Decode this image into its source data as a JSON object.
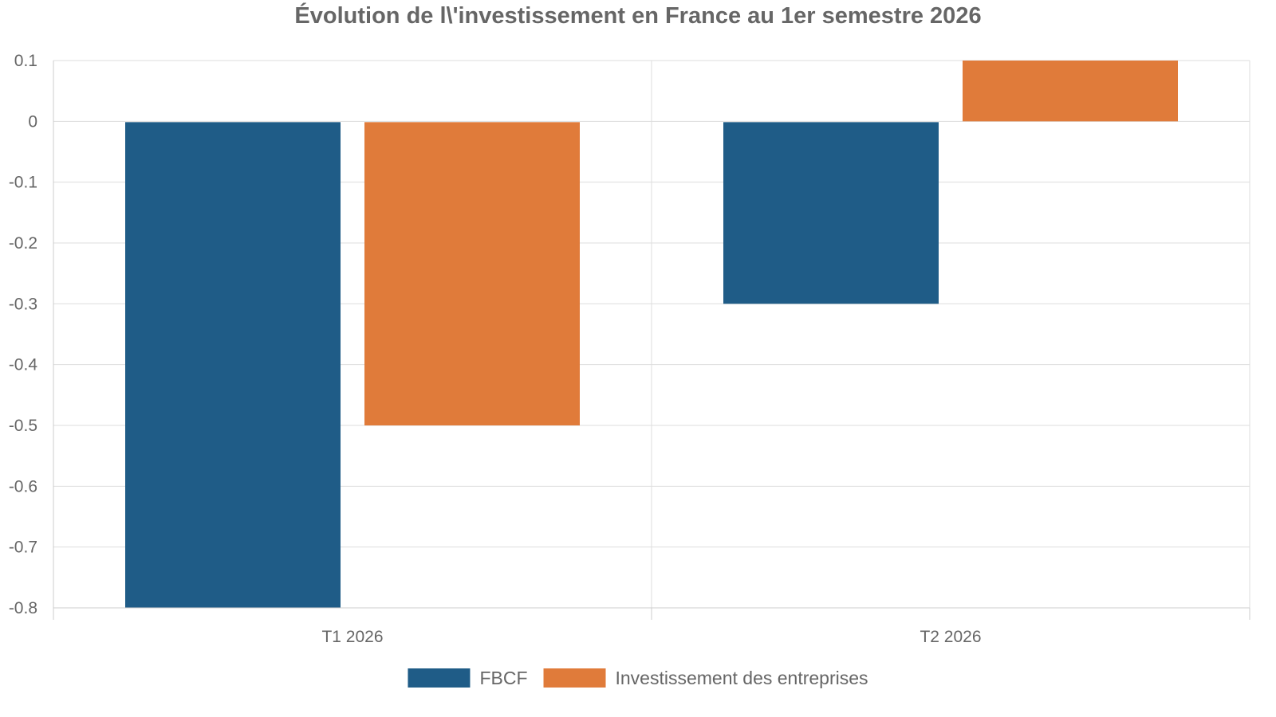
{
  "chart_data": {
    "type": "bar",
    "title": "Évolution de l\\'investissement en France au 1er semestre 2026",
    "xlabel": "",
    "ylabel": "",
    "categories": [
      "T1 2026",
      "T2 2026"
    ],
    "series": [
      {
        "name": "FBCF",
        "values": [
          -0.8,
          -0.3
        ],
        "color": "#1f5c87"
      },
      {
        "name": "Investissement des entreprises",
        "values": [
          -0.5,
          0.1
        ],
        "color": "#e07b3a"
      }
    ],
    "ylim": [
      -0.8,
      0.1
    ],
    "yticks": [
      "0.1",
      "0",
      "-0.1",
      "-0.2",
      "-0.3",
      "-0.4",
      "-0.5",
      "-0.6",
      "-0.7",
      "-0.8"
    ],
    "grid": true,
    "legend_position": "bottom-center"
  }
}
